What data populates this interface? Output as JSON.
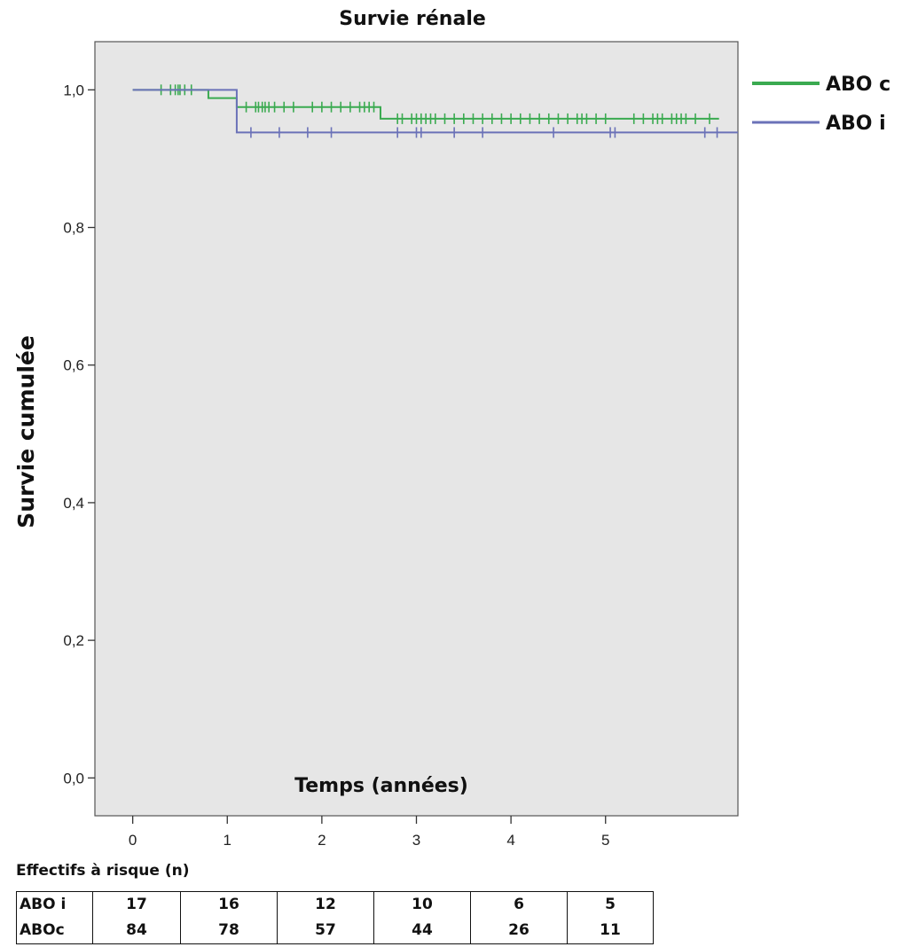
{
  "chart_data": {
    "type": "line",
    "subtype": "kaplan-meier",
    "title": "Survie rénale",
    "xlabel": "Temps (années)",
    "ylabel": "Survie cumulée",
    "xlim": [
      -0.4,
      6.4
    ],
    "ylim": [
      -0.055,
      1.07
    ],
    "x_ticks": [
      0,
      1,
      2,
      3,
      4,
      5
    ],
    "x_tick_labels": [
      "0",
      "1",
      "2",
      "3",
      "4",
      "5"
    ],
    "y_ticks": [
      0.0,
      0.2,
      0.4,
      0.6,
      0.8,
      1.0
    ],
    "y_tick_labels": [
      "0,0",
      "0,2",
      "0,4",
      "0,6",
      "0,8",
      "1,0"
    ],
    "grid": false,
    "background": "#e6e6e6",
    "legend_position": "outside-right-top",
    "series": [
      {
        "name": "ABO c",
        "color": "#3aaa50",
        "steps": [
          [
            0,
            1.0
          ],
          [
            0.8,
            0.988
          ],
          [
            1.1,
            0.975
          ],
          [
            2.62,
            0.958
          ],
          [
            6.2,
            0.958
          ]
        ],
        "censor": [
          0.3,
          0.4,
          0.45,
          0.48,
          0.5,
          0.55,
          0.62,
          1.2,
          1.3,
          1.33,
          1.37,
          1.4,
          1.44,
          1.5,
          1.6,
          1.7,
          1.9,
          2.0,
          2.1,
          2.2,
          2.3,
          2.4,
          2.45,
          2.5,
          2.55,
          2.8,
          2.85,
          2.95,
          3.0,
          3.05,
          3.1,
          3.15,
          3.2,
          3.3,
          3.4,
          3.5,
          3.6,
          3.7,
          3.8,
          3.9,
          4.0,
          4.1,
          4.2,
          4.3,
          4.4,
          4.5,
          4.6,
          4.7,
          4.75,
          4.8,
          4.9,
          5.0,
          5.3,
          5.4,
          5.5,
          5.55,
          5.6,
          5.7,
          5.75,
          5.8,
          5.85,
          5.95,
          6.1
        ]
      },
      {
        "name": "ABO i",
        "color": "#6b72b8",
        "steps": [
          [
            0,
            1.0
          ],
          [
            1.1,
            0.938
          ],
          [
            6.4,
            0.938
          ]
        ],
        "censor": [
          1.25,
          1.55,
          1.85,
          2.1,
          2.8,
          3.0,
          3.05,
          3.4,
          3.7,
          4.45,
          5.05,
          5.1,
          6.05,
          6.18
        ]
      }
    ],
    "risk_table": {
      "title": "Effectifs à risque (n)",
      "rows": [
        {
          "label": "ABO i",
          "values": [
            "17",
            "16",
            "12",
            "10",
            "6",
            "5"
          ]
        },
        {
          "label": "ABOc",
          "values": [
            "84",
            "78",
            "57",
            "44",
            "26",
            "11"
          ]
        }
      ]
    }
  }
}
